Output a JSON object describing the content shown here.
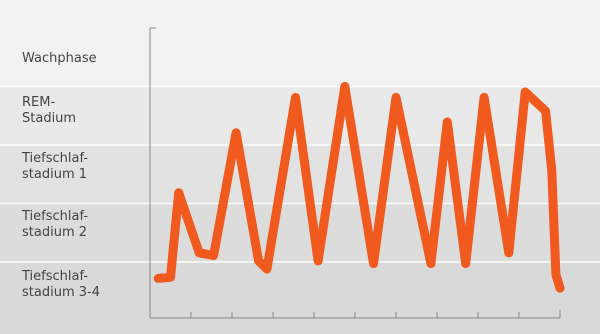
{
  "chart_data": {
    "type": "line",
    "title": "",
    "xlabel": "",
    "ylabel": "",
    "grid": true,
    "legend": "none",
    "x_ticks": 9,
    "y_categories": [
      [
        "Wachphase"
      ],
      [
        "REM-",
        "Stadium"
      ],
      [
        "Tiefschlaf-",
        "stadium 1"
      ],
      [
        "Tiefschlaf-",
        "stadium 2"
      ],
      [
        "Tiefschlaf-",
        "stadium 3-4"
      ]
    ],
    "ylim": [
      -0.3,
      4.7
    ],
    "xlim": [
      0,
      1
    ],
    "series": [
      {
        "color": "#f05a1e",
        "points": [
          [
            0.02,
            0.03
          ],
          [
            0.05,
            0.05
          ],
          [
            0.07,
            1.6
          ],
          [
            0.12,
            0.5
          ],
          [
            0.155,
            0.45
          ],
          [
            0.21,
            2.7
          ],
          [
            0.265,
            0.35
          ],
          [
            0.285,
            0.2
          ],
          [
            0.355,
            3.35
          ],
          [
            0.41,
            0.35
          ],
          [
            0.475,
            3.55
          ],
          [
            0.545,
            0.3
          ],
          [
            0.6,
            3.35
          ],
          [
            0.685,
            0.3
          ],
          [
            0.725,
            2.9
          ],
          [
            0.77,
            0.3
          ],
          [
            0.815,
            3.35
          ],
          [
            0.875,
            0.5
          ],
          [
            0.915,
            3.45
          ],
          [
            0.965,
            3.1
          ],
          [
            0.98,
            2.0
          ],
          [
            0.99,
            0.1
          ],
          [
            1.0,
            -0.15
          ]
        ]
      }
    ],
    "background_bands": [
      "#f2f2f2",
      "#e9e9e9",
      "#e2e2e2",
      "#dcdcdc",
      "#d9d9d9"
    ]
  }
}
